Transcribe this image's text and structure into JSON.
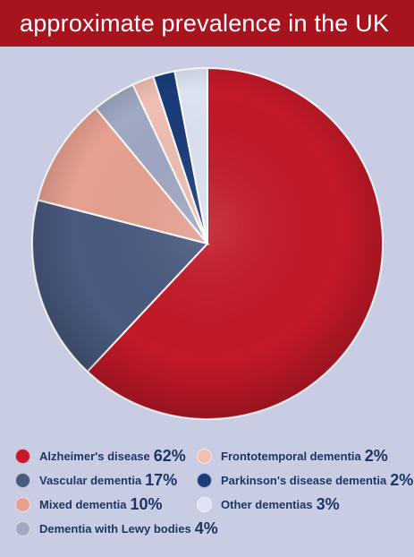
{
  "title": "approximate prevalence in the UK",
  "colors": {
    "title_bg": "#a8141e",
    "text": "#1f3566"
  },
  "chart_data": {
    "type": "pie",
    "title": "approximate prevalence in the UK",
    "slices": [
      {
        "label": "Alzheimer's disease",
        "value": 62,
        "display": "62%",
        "color": "#c41928"
      },
      {
        "label": "Vascular dementia",
        "value": 17,
        "display": "17%",
        "color": "#4a5a80"
      },
      {
        "label": "Mixed dementia",
        "value": 10,
        "display": "10%",
        "color": "#e8a191"
      },
      {
        "label": "Dementia with Lewy bodies",
        "value": 4,
        "display": "4%",
        "color": "#a0a8c4"
      },
      {
        "label": "Frontotemporal dementia",
        "value": 2,
        "display": "2%",
        "color": "#f0bfb3"
      },
      {
        "label": "Parkinson's disease dementia",
        "value": 2,
        "display": "2%",
        "color": "#1a3c7a"
      },
      {
        "label": "Other dementias",
        "value": 3,
        "display": "3%",
        "color": "#dde3f2"
      }
    ]
  }
}
